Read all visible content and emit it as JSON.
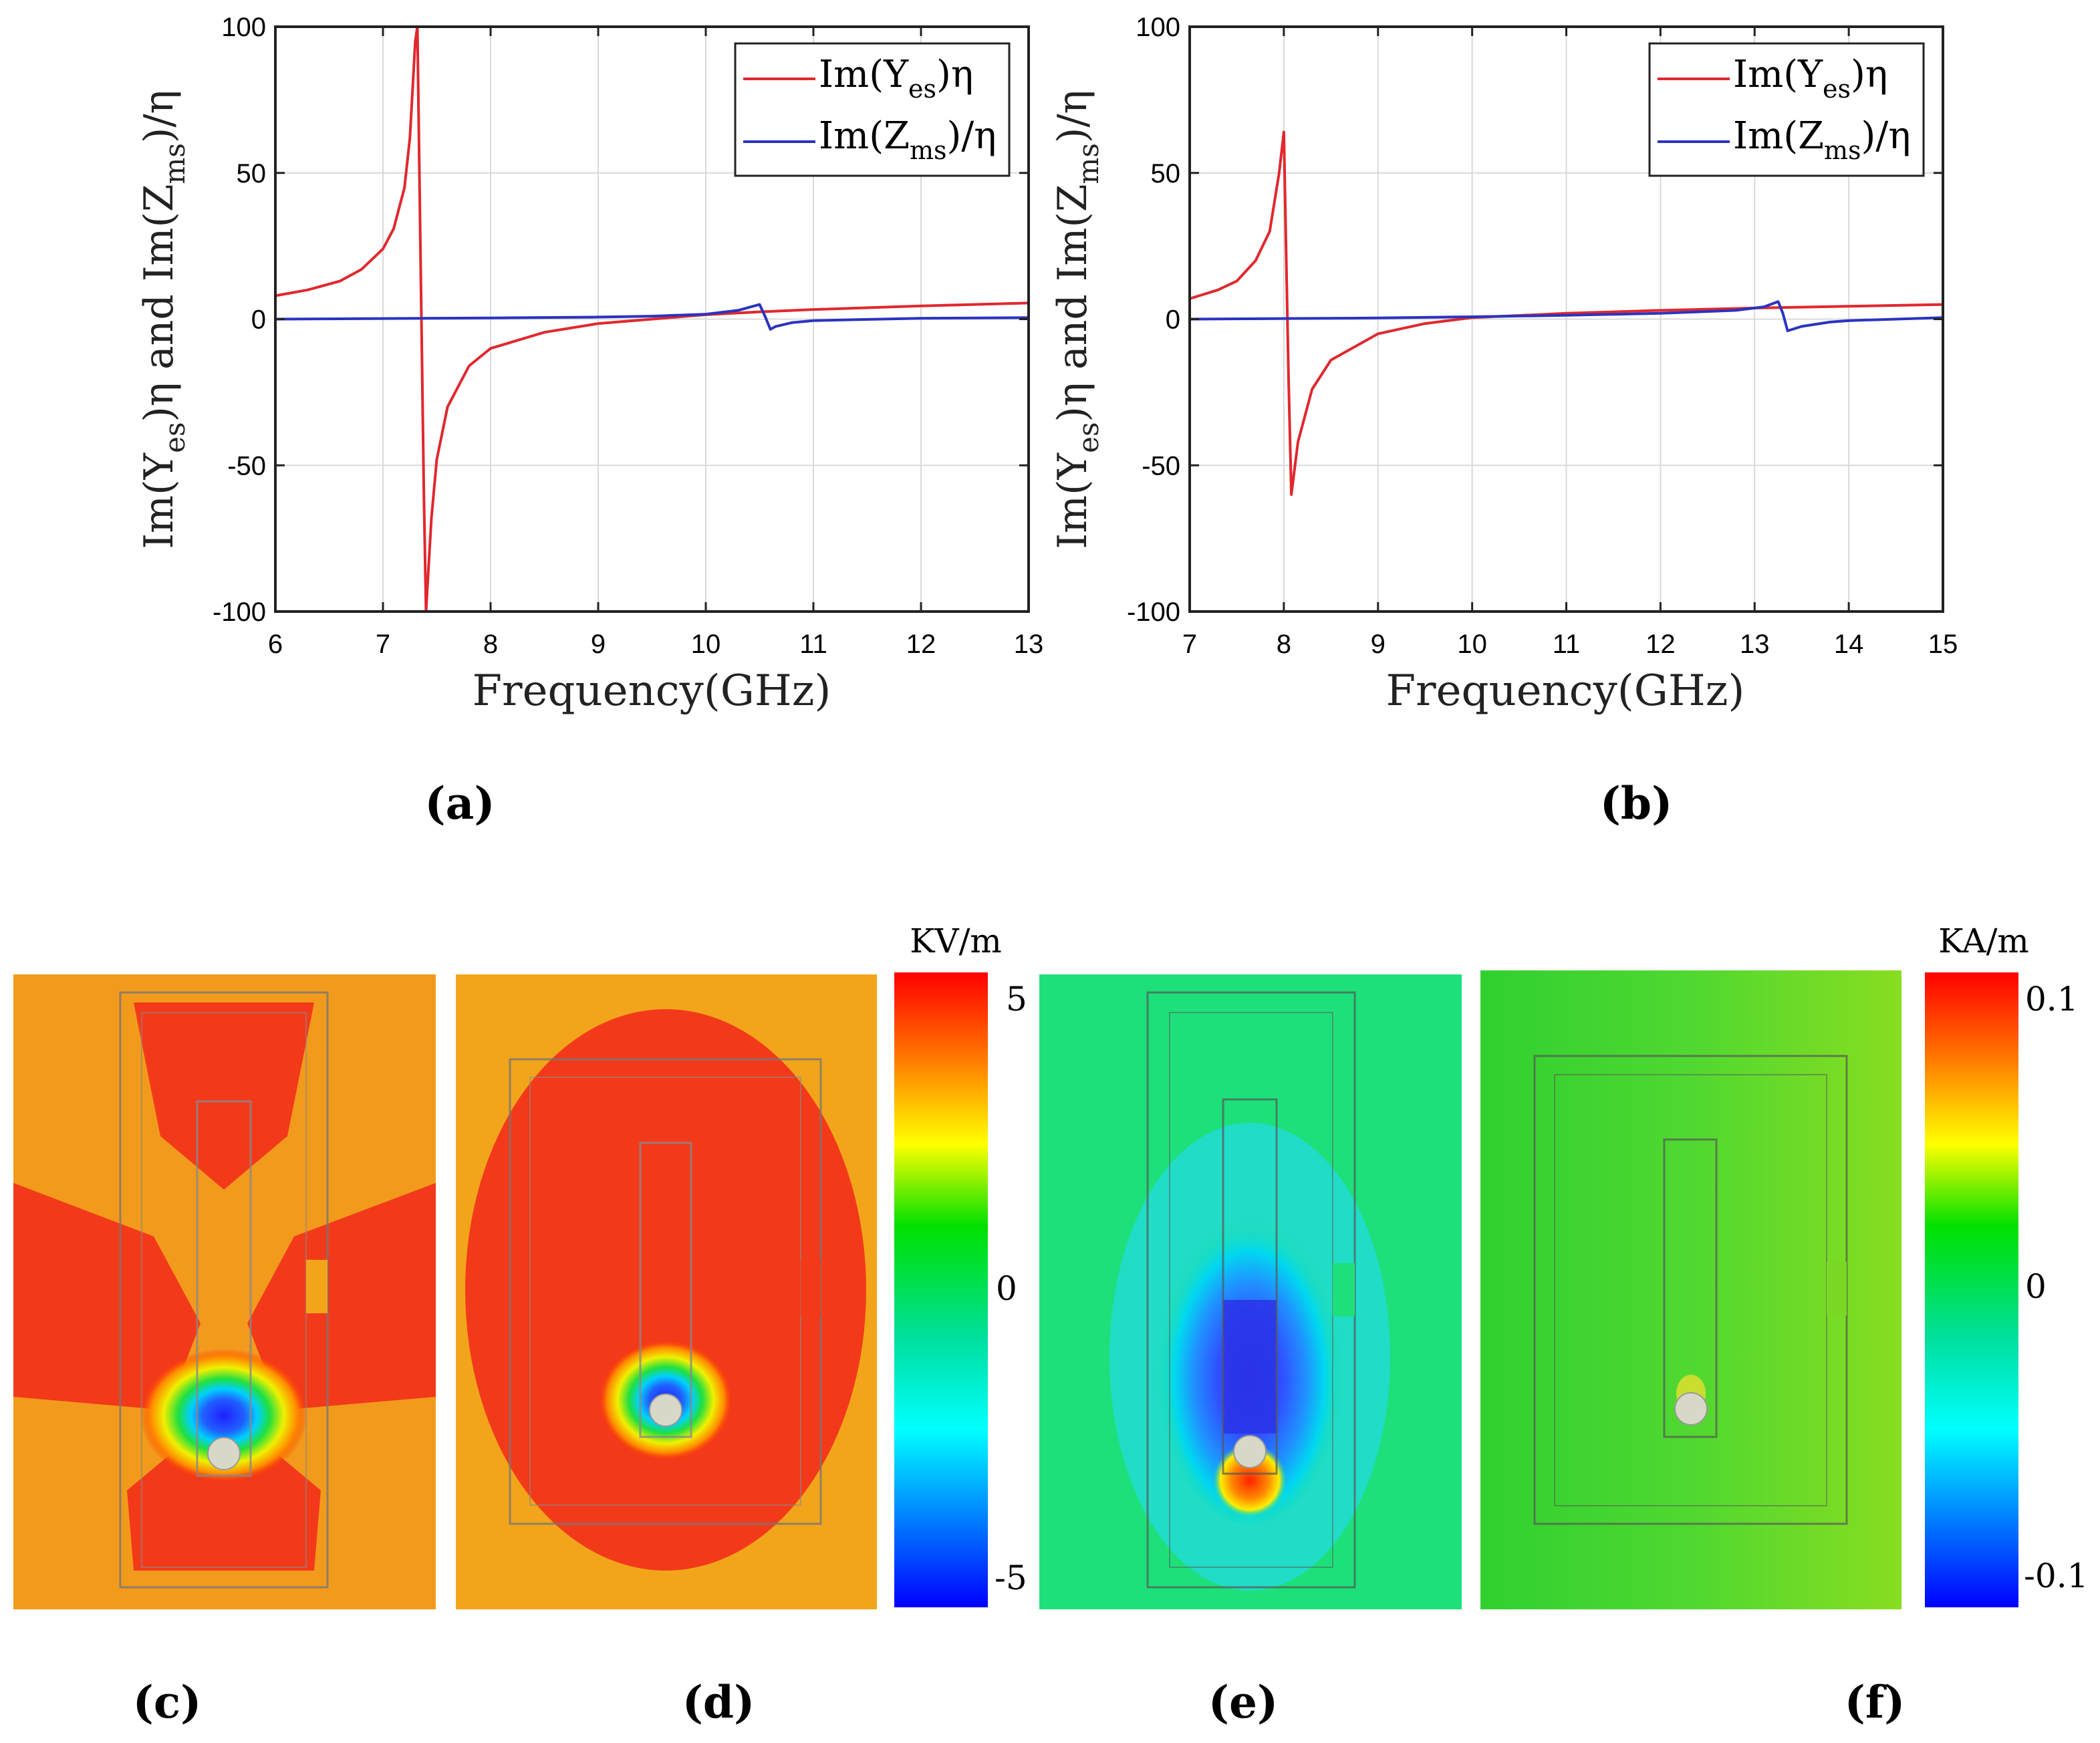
{
  "chart_data": [
    {
      "id": "a",
      "type": "line",
      "panel_label": "(a)",
      "xlabel": "Frequency(GHz)",
      "ylabel": "Im(Yes)η and Im(Zms)/η",
      "xlim": [
        6,
        13
      ],
      "ylim": [
        -100,
        100
      ],
      "xticks": [
        "6",
        "7",
        "8",
        "9",
        "10",
        "11",
        "12",
        "13"
      ],
      "yticks": [
        "100",
        "50",
        "0",
        "-50",
        "-100"
      ],
      "grid": true,
      "legend_position": "top-right",
      "series": [
        {
          "name": "Im(Yes)η",
          "color": "#e0282e",
          "x": [
            6,
            6.3,
            6.6,
            6.8,
            7.0,
            7.1,
            7.2,
            7.25,
            7.3,
            7.32,
            7.35,
            7.38,
            7.4,
            7.45,
            7.5,
            7.6,
            7.8,
            8.0,
            8.5,
            9.0,
            9.5,
            10.0,
            10.5,
            11,
            12,
            13
          ],
          "y": [
            8,
            10,
            13,
            17,
            24,
            31,
            45,
            62,
            95,
            100,
            20,
            -60,
            -100,
            -68,
            -48,
            -30,
            -16,
            -10,
            -4.5,
            -1.5,
            0,
            1.5,
            2.5,
            3.3,
            4.5,
            5.5
          ]
        },
        {
          "name": "Im(Zms)/η",
          "color": "#2b33c0",
          "x": [
            6,
            7,
            8,
            9,
            9.5,
            10,
            10.3,
            10.5,
            10.55,
            10.6,
            10.65,
            10.8,
            11,
            12,
            13
          ],
          "y": [
            0,
            0.2,
            0.4,
            0.7,
            1.0,
            1.7,
            3.0,
            5.0,
            1.0,
            -3.5,
            -2.5,
            -1.2,
            -0.5,
            0.3,
            0.5
          ]
        }
      ]
    },
    {
      "id": "b",
      "type": "line",
      "panel_label": "(b)",
      "xlabel": "Frequency(GHz)",
      "ylabel": "Im(Yes)η and Im(Zms)/η",
      "xlim": [
        7,
        15
      ],
      "ylim": [
        -100,
        100
      ],
      "xticks": [
        "7",
        "8",
        "9",
        "10",
        "11",
        "12",
        "13",
        "14",
        "15"
      ],
      "yticks": [
        "100",
        "50",
        "0",
        "-50",
        "-100"
      ],
      "grid": true,
      "legend_position": "top-right",
      "series": [
        {
          "name": "Im(Yes)η",
          "color": "#e0282e",
          "x": [
            7,
            7.3,
            7.5,
            7.7,
            7.85,
            7.95,
            8.0,
            8.02,
            8.05,
            8.08,
            8.15,
            8.3,
            8.5,
            9.0,
            9.5,
            10,
            11,
            12,
            13,
            14,
            15
          ],
          "y": [
            7,
            10,
            13,
            20,
            30,
            50,
            64,
            30,
            -20,
            -60,
            -42,
            -24,
            -14,
            -5,
            -1.5,
            0.5,
            2.0,
            3.0,
            3.8,
            4.4,
            5.0
          ]
        },
        {
          "name": "Im(Zms)/η",
          "color": "#2b33c0",
          "x": [
            7,
            8,
            9,
            10,
            11,
            12,
            12.8,
            13.1,
            13.25,
            13.3,
            13.35,
            13.5,
            13.8,
            14,
            15
          ],
          "y": [
            0,
            0.2,
            0.4,
            0.8,
            1.3,
            2.0,
            3.0,
            4.2,
            6.0,
            2.0,
            -4.0,
            -2.5,
            -1.0,
            -0.5,
            0.5
          ]
        }
      ]
    }
  ],
  "legend_labels": {
    "y_main": "Im(Y",
    "y_sub": "es",
    "y_tail": ")η",
    "z_main": "Im(Z",
    "z_sub": "ms",
    "z_tail": ")/η"
  },
  "field_maps": {
    "colorbar_e": {
      "unit": "KV/m",
      "max": "5",
      "mid": "0",
      "min": "-5"
    },
    "colorbar_h": {
      "unit": "KA/m",
      "max": "0.1",
      "mid": "0",
      "min": "-0.1"
    },
    "panels": [
      "(c)",
      "(d)",
      "(e)",
      "(f)"
    ]
  },
  "colors": {
    "red": "#e0282e",
    "blue": "#2b33c0",
    "grid": "#d9d9d9"
  }
}
